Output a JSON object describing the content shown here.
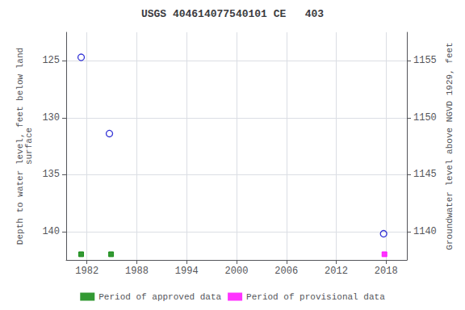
{
  "chart_data": {
    "type": "scatter",
    "title": "USGS 404614077540101 CE   403",
    "series": [
      {
        "color": "#0000cc",
        "marker": "open_circle",
        "x": [
          1981.3,
          1984.7,
          2017.7
        ],
        "values": [
          124.7,
          131.4,
          140.2
        ]
      },
      {
        "name": "Period of approved data",
        "color": "#008000",
        "marker": "square",
        "x": [
          1981.3,
          1984.9
        ],
        "values": [
          142.0,
          142.0
        ]
      },
      {
        "name": "Period of provisional data",
        "color": "#ff00ff",
        "marker": "square",
        "x": [
          2017.8
        ],
        "values": [
          142.0
        ]
      }
    ],
    "xlim": [
      1979.5,
      2020.5
    ],
    "xticks": [
      1982,
      1988,
      1994,
      2000,
      2006,
      2012,
      2018
    ],
    "ylim": [
      142.5,
      122.5
    ],
    "yticks": [
      125,
      130,
      135,
      140
    ],
    "y2lim": [
      1137.5,
      1157.5
    ],
    "y2ticks": [
      1140,
      1145,
      1150,
      1155
    ],
    "ylabel": "Depth to water level, feet below land\nsurface",
    "y2label": "Groundwater level above NGVD 1929, feet",
    "grid": true,
    "legend": "bottom"
  }
}
